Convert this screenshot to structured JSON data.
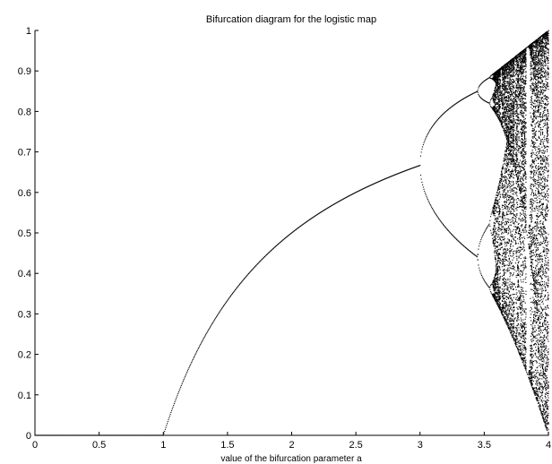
{
  "chart_data": {
    "type": "scatter",
    "title": "Bifurcation diagram for the logistic map",
    "xlabel": "value of the bifurcation parameter a",
    "ylabel": "",
    "xlim": [
      0,
      4
    ],
    "ylim": [
      0,
      1
    ],
    "xticks": [
      "0",
      "0.5",
      "1",
      "1.5",
      "2",
      "2.5",
      "3",
      "3.5",
      "4"
    ],
    "yticks": [
      "0",
      "0.1",
      "0.2",
      "0.3",
      "0.4",
      "0.5",
      "0.6",
      "0.7",
      "0.8",
      "0.9",
      "1"
    ],
    "grid": false,
    "legend": "none",
    "series": [
      {
        "values": [
          [
            0,
            0
          ],
          [
            0.5,
            0
          ],
          [
            1.0,
            0
          ],
          [
            1.25,
            0.2
          ],
          [
            1.5,
            0.3333
          ],
          [
            1.75,
            0.4286
          ],
          [
            2.0,
            0.5
          ],
          [
            2.25,
            0.5556
          ],
          [
            2.5,
            0.6
          ],
          [
            2.75,
            0.6364
          ],
          [
            3.0,
            0.6667
          ],
          [
            3.2,
            0.513
          ],
          [
            3.2,
            0.7995
          ],
          [
            3.45,
            0.44
          ],
          [
            3.45,
            0.85
          ],
          [
            3.5,
            0.3828
          ],
          [
            3.5,
            0.5009
          ],
          [
            3.5,
            0.8269
          ],
          [
            3.5,
            0.875
          ],
          [
            3.6,
            0.32
          ],
          [
            3.6,
            0.9
          ],
          [
            3.8,
            0.19
          ],
          [
            3.8,
            0.95
          ],
          [
            4.0,
            0
          ],
          [
            4.0,
            1.0
          ]
        ]
      }
    ],
    "point_color": "#000000"
  }
}
